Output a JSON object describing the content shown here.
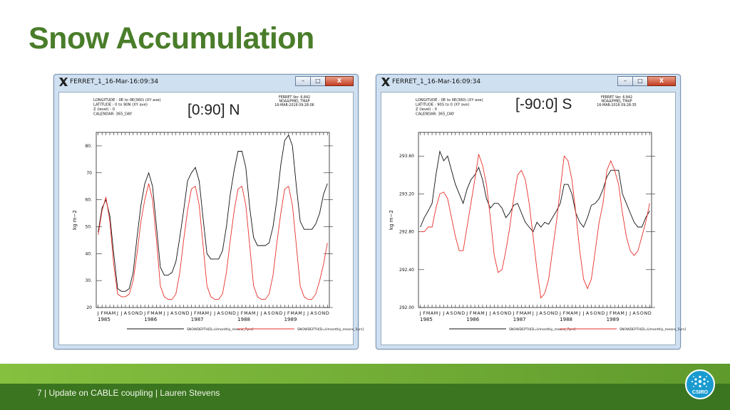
{
  "slide": {
    "title": "Snow Accumulation",
    "footer": "7 | Update on CABLE coupling | Lauren Stevens",
    "logo_text": "CSIRO"
  },
  "windows": [
    {
      "title": "FERRET_1_16-Mar-16:09:34",
      "hemisphere_label": "[0:90] N",
      "buttons": {
        "minimize": "–",
        "maximize": "□",
        "close": "X"
      },
      "header_left": [
        "LONGITUDE : 0E to 0E(360) (XY ave)",
        "LATITUDE : 0 to 90N (XY ave)",
        "Z (level) : 0",
        "CALENDAR: 365_DAY"
      ],
      "header_right": [
        "FERRET Ver. 6.842",
        "NOAA/PMEL TMAP",
        "16-MAR-2016 09:28:06"
      ]
    },
    {
      "title": "FERRET_1_16-Mar-16:09:34",
      "hemisphere_label": "[-90:0] S",
      "buttons": {
        "minimize": "–",
        "maximize": "□",
        "close": "X"
      },
      "header_left": [
        "LONGITUDE : 0E to 0E(360) (XY ave)",
        "LATITUDE : 90S to 0 (XY ave)",
        "Z (level) : 0",
        "CALENDAR: 365_DAY"
      ],
      "header_right": [
        "FERRET Ver. 6.842",
        "NOAA/PMEL TMAP",
        "16-MAR-2016 09:28:35"
      ]
    }
  ],
  "colors": {
    "series_black": "#111111",
    "series_red": "#e8312a"
  },
  "chart_data": [
    {
      "type": "line",
      "title": "[0:90] N",
      "ylabel": "kg m−2",
      "ylim": [
        20,
        85
      ],
      "yticks": [
        20,
        30,
        40,
        50,
        60,
        70,
        80
      ],
      "ytick_labels": [
        "20",
        "30.",
        "40.",
        "50.",
        "60.",
        "70",
        "80."
      ],
      "month_labels": [
        "J",
        "F",
        "M",
        "A",
        "M",
        "J",
        "J",
        "A",
        "S",
        "O",
        "N",
        "D",
        "J",
        "F",
        "M",
        "A",
        "M",
        "J",
        "J",
        "A",
        "S",
        "O",
        "N",
        "D",
        "J",
        "F",
        "M",
        "A",
        "M",
        "J",
        "J",
        "A",
        "S",
        "O",
        "N",
        "D",
        "J",
        "F",
        "M",
        "A",
        "M",
        "J",
        "J",
        "A",
        "S",
        "O",
        "N",
        "D",
        "J",
        "F",
        "M",
        "A",
        "M",
        "J",
        "J",
        "A",
        "S",
        "O",
        "N",
        "D"
      ],
      "year_labels": [
        "1985",
        "1986",
        "1987",
        "1988",
        "1989"
      ],
      "series": [
        {
          "name": "SNOWDEPTH[D=Umonthly_means_7yrs]",
          "color": "black",
          "values": [
            48,
            57,
            60,
            54,
            40,
            27,
            26,
            26,
            27,
            33,
            46,
            58,
            66,
            70,
            65,
            50,
            35,
            32,
            32,
            33,
            37,
            46,
            56,
            67,
            70,
            72,
            67,
            53,
            40,
            38,
            38,
            38,
            41,
            50,
            62,
            71,
            78,
            78,
            72,
            57,
            46,
            43,
            43,
            43,
            44,
            50,
            60,
            73,
            82,
            84,
            80,
            65,
            52,
            49,
            49,
            49,
            51,
            55,
            62,
            66
          ]
        },
        {
          "name": "SNOWDEPTH[D=Umonthly_means_5yrs]",
          "color": "red",
          "values": [
            47,
            56,
            61,
            52,
            36,
            25,
            24,
            24,
            25,
            30,
            40,
            52,
            60,
            66,
            60,
            45,
            28,
            24,
            23,
            23,
            25,
            33,
            45,
            56,
            64,
            65,
            58,
            43,
            28,
            24,
            23,
            23,
            25,
            33,
            45,
            56,
            64,
            65,
            58,
            43,
            28,
            24,
            23,
            23,
            25,
            32,
            44,
            55,
            64,
            65,
            58,
            43,
            28,
            24,
            23,
            23,
            25,
            30,
            36,
            44
          ]
        }
      ]
    },
    {
      "type": "line",
      "title": "[-90:0] S",
      "ylabel": "kg m−2",
      "ylim": [
        292.0,
        293.85
      ],
      "yticks": [
        292.0,
        292.4,
        292.8,
        293.2,
        293.6
      ],
      "ytick_labels": [
        "292.00",
        "292.40",
        "292.80",
        "293.20",
        "293.60"
      ],
      "month_labels": [
        "J",
        "F",
        "M",
        "A",
        "M",
        "J",
        "J",
        "A",
        "S",
        "O",
        "N",
        "D",
        "J",
        "F",
        "M",
        "A",
        "M",
        "J",
        "J",
        "A",
        "S",
        "O",
        "N",
        "D",
        "J",
        "F",
        "M",
        "A",
        "M",
        "J",
        "J",
        "A",
        "S",
        "O",
        "N",
        "D",
        "J",
        "F",
        "M",
        "A",
        "M",
        "J",
        "J",
        "A",
        "S",
        "O",
        "N",
        "D",
        "J",
        "F",
        "M",
        "A",
        "M",
        "J",
        "J",
        "A",
        "S",
        "O",
        "N",
        "D"
      ],
      "year_labels": [
        "1985",
        "1986",
        "1987",
        "1988",
        "1989"
      ],
      "series": [
        {
          "name": "SNOWDEPTH[D=Umonthly_means_7yrs]",
          "color": "black",
          "values": [
            292.85,
            292.95,
            293.02,
            293.1,
            293.4,
            293.65,
            293.55,
            293.6,
            293.45,
            293.3,
            293.2,
            293.1,
            293.25,
            293.35,
            293.4,
            293.48,
            293.35,
            293.15,
            293.05,
            293.1,
            293.1,
            293.05,
            292.95,
            293.0,
            293.08,
            293.1,
            293.0,
            292.9,
            292.85,
            292.8,
            292.9,
            292.85,
            292.9,
            292.88,
            292.95,
            293.02,
            293.1,
            293.3,
            293.3,
            293.2,
            293.0,
            292.9,
            292.85,
            292.95,
            293.08,
            293.1,
            293.15,
            293.25,
            293.38,
            293.45,
            293.45,
            293.45,
            293.2,
            293.1,
            293.0,
            292.9,
            292.85,
            292.85,
            292.95,
            293.02
          ]
        },
        {
          "name": "SNOWDEPTH[D=Umonthly_means_5yrs]",
          "color": "red",
          "values": [
            292.8,
            292.8,
            292.85,
            292.85,
            293.05,
            293.2,
            293.22,
            293.15,
            292.95,
            292.75,
            292.6,
            292.6,
            292.85,
            293.1,
            293.35,
            293.62,
            293.5,
            293.3,
            292.95,
            292.55,
            292.37,
            292.4,
            292.6,
            292.85,
            293.15,
            293.4,
            293.45,
            293.35,
            293.1,
            292.75,
            292.4,
            292.1,
            292.15,
            292.3,
            292.6,
            292.9,
            293.25,
            293.6,
            293.55,
            293.35,
            293.0,
            292.6,
            292.3,
            292.2,
            292.3,
            292.6,
            292.9,
            293.1,
            293.45,
            293.55,
            293.45,
            293.3,
            293.0,
            292.75,
            292.6,
            292.55,
            292.6,
            292.75,
            292.9,
            293.1
          ]
        }
      ]
    }
  ]
}
